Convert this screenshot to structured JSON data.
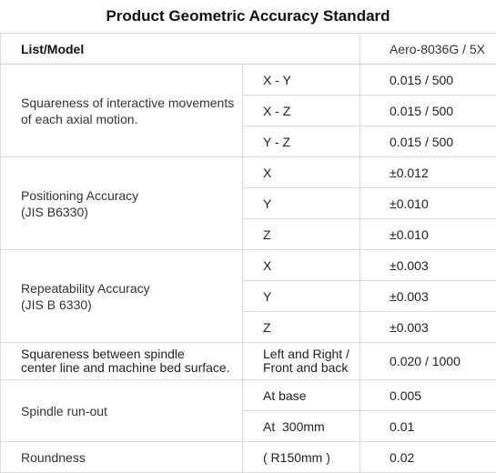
{
  "title": "Product Geometric Accuracy Standard",
  "header": {
    "list_model": "List/Model",
    "model": "Aero-8036G / 5X"
  },
  "rows": {
    "squareness_axial": {
      "label": "Squareness of interactive movements of each axial motion.",
      "items": [
        {
          "axis": "X - Y",
          "value": "0.015 / 500"
        },
        {
          "axis": "X - Z",
          "value": "0.015 / 500"
        },
        {
          "axis": "Y - Z",
          "value": "0.015 / 500"
        }
      ]
    },
    "positioning": {
      "label_line1": "Positioning Accuracy",
      "label_line2": "(JIS B6330)",
      "items": [
        {
          "axis": "X",
          "value": "±0.012"
        },
        {
          "axis": "Y",
          "value": "±0.010"
        },
        {
          "axis": "Z",
          "value": "±0.010"
        }
      ]
    },
    "repeatability": {
      "label_line1": "Repeatability Accuracy",
      "label_line2": "(JIS B 6330)",
      "items": [
        {
          "axis": "X",
          "value": "±0.003"
        },
        {
          "axis": "Y",
          "value": "±0.003"
        },
        {
          "axis": "Z",
          "value": "±0.003"
        }
      ]
    },
    "squareness_spindle": {
      "label_line1": "Squareness between spindle",
      "label_line2": "center line and machine bed surface.",
      "axis_line1": "Left and Right /",
      "axis_line2": "Front and back",
      "value": "0.020 / 1000"
    },
    "runout": {
      "label": "Spindle run-out",
      "items": [
        {
          "axis": "At base",
          "value": "0.005"
        },
        {
          "axis": "At  300mm",
          "value": "0.01"
        }
      ]
    },
    "roundness": {
      "label": "Roundness",
      "axis": "( R150mm )",
      "value": "0.02"
    }
  }
}
